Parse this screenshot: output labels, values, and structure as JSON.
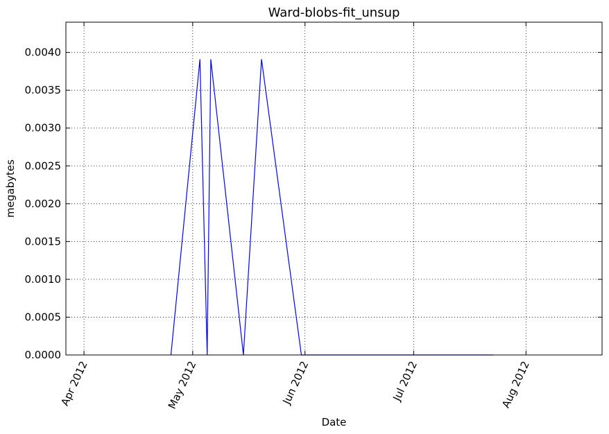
{
  "chart_data": {
    "type": "line",
    "title": "Ward-blobs-fit_unsup",
    "xlabel": "Date",
    "ylabel": "megabytes",
    "x_tick_labels": [
      "Apr 2012",
      "May 2012",
      "Jun 2012",
      "Jul 2012",
      "Aug 2012"
    ],
    "x_tick_dates": [
      "2012-04-01",
      "2012-05-01",
      "2012-06-01",
      "2012-07-01",
      "2012-08-01"
    ],
    "xlim": [
      "2012-03-27",
      "2012-08-22"
    ],
    "y_tick_labels": [
      "0.0000",
      "0.0005",
      "0.0010",
      "0.0015",
      "0.0020",
      "0.0025",
      "0.0030",
      "0.0035",
      "0.0040"
    ],
    "y_ticks": [
      0,
      0.0005,
      0.001,
      0.0015,
      0.002,
      0.0025,
      0.003,
      0.0035,
      0.004
    ],
    "ylim": [
      0,
      0.0044
    ],
    "grid": true,
    "series": [
      {
        "color": "#0000ff",
        "x": [
          "2012-04-25",
          "2012-05-03",
          "2012-05-05",
          "2012-05-06",
          "2012-05-15",
          "2012-05-20",
          "2012-05-31",
          "2012-07-23"
        ],
        "y": [
          0,
          0.00391,
          0,
          0.00391,
          0,
          0.00391,
          0,
          0
        ]
      }
    ]
  }
}
